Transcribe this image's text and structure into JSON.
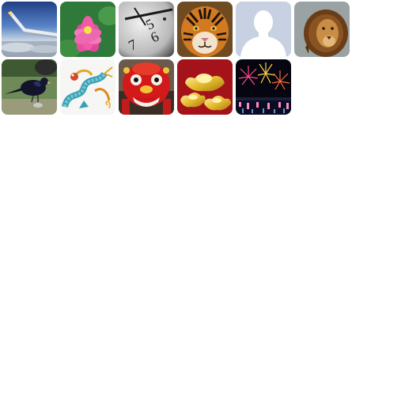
{
  "gallery": {
    "items": [
      {
        "name": "airplane-wing-sky",
        "icon": "airplane-wing-icon"
      },
      {
        "name": "pink-lotus-flower",
        "icon": "lotus-icon"
      },
      {
        "name": "clock-face-closeup",
        "icon": "clock-icon"
      },
      {
        "name": "tiger-face",
        "icon": "tiger-icon"
      },
      {
        "name": "default-profile-silhouette",
        "icon": "profile-silhouette-icon"
      },
      {
        "name": "lion-portrait",
        "icon": "lion-icon"
      },
      {
        "name": "black-bird-on-ground",
        "icon": "bird-icon"
      },
      {
        "name": "dragon-illustration",
        "icon": "dragon-icon"
      },
      {
        "name": "red-lion-dance-head",
        "icon": "lion-dance-icon"
      },
      {
        "name": "gold-ingots",
        "icon": "gold-ingot-icon"
      },
      {
        "name": "fireworks-night",
        "icon": "fireworks-icon"
      }
    ]
  }
}
